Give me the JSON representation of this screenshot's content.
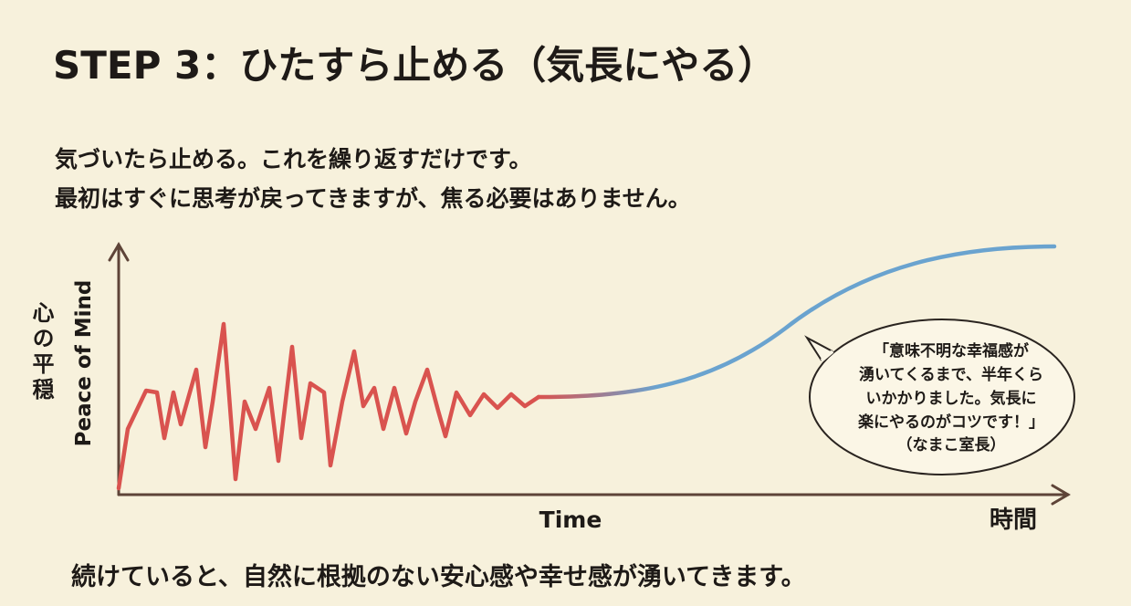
{
  "header": {
    "title": "STEP 3：ひたすら止める（気長にやる）"
  },
  "intro": {
    "lines": [
      "気づいたら止める。これを繰り返すだけです。",
      "最初はすぐに思考が戻ってきますが、焦る必要はありません。"
    ]
  },
  "diagram": {
    "y_axis_label_ja": "心の平穏",
    "y_axis_label_en": "Peace of Mind",
    "x_axis_label_en": "Time",
    "x_axis_label_ja": "時間",
    "speech_bubble": {
      "lines": [
        "「意味不明な幸福感が",
        "湧いてくるまで、半年くら",
        "いかかりました。気長に",
        "楽にやるのがコツです！」",
        "（なまこ室長）"
      ]
    }
  },
  "footer": {
    "text": "続けていると、自然に根拠のない安心感や幸せ感が湧いてきます。"
  }
}
